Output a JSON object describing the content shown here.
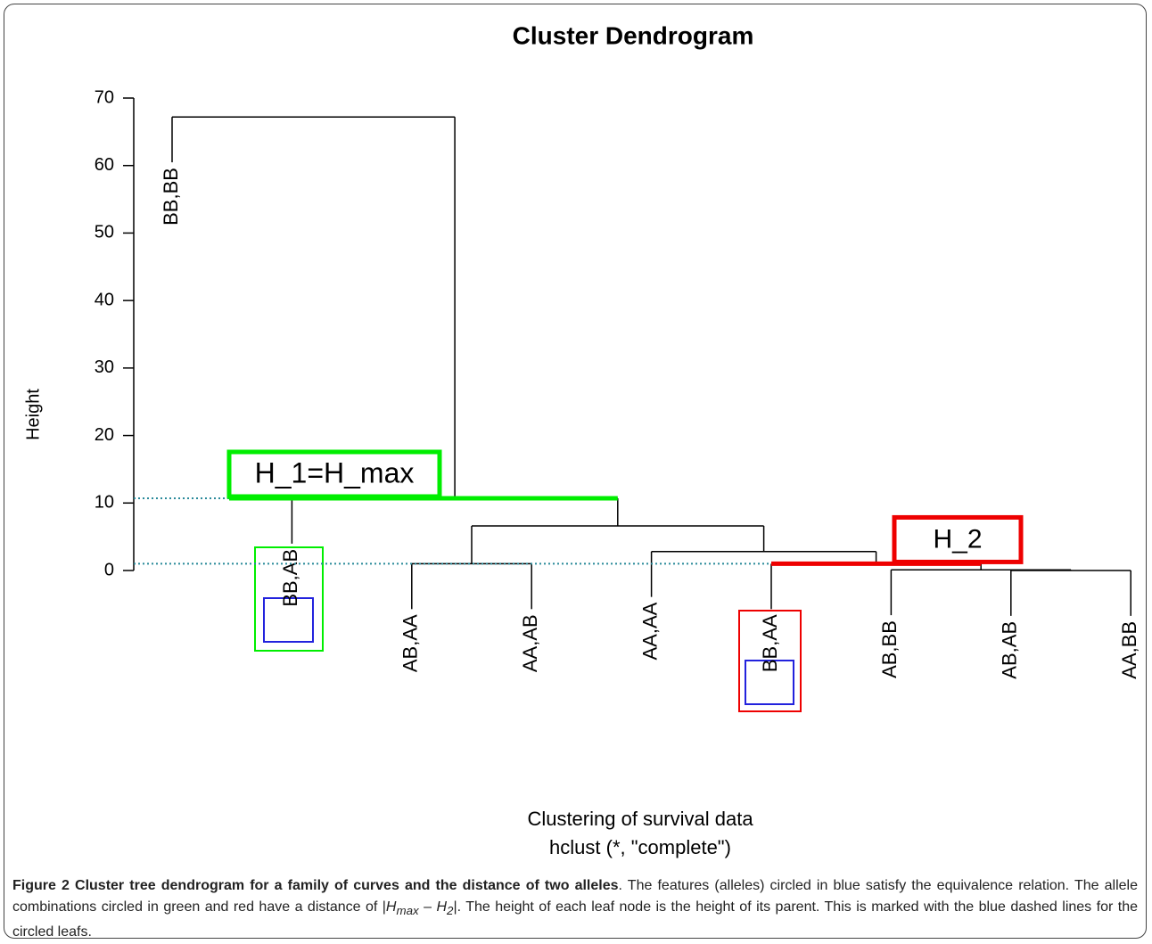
{
  "chart_data": {
    "type": "dendrogram",
    "title": "Cluster Dendrogram",
    "ylabel": "Height",
    "xlabel": "Clustering of survival data",
    "subtitle": "hclust (*, \"complete\")",
    "leaves": [
      "BB,BB",
      "BB,AB",
      "AB,AA",
      "AA,AB",
      "AA,AA",
      "BB,AA",
      "AB,BB",
      "AB,AB",
      "AA,BB"
    ],
    "merges": [
      {
        "children": [
          -8,
          -9
        ],
        "height": 0.0
      },
      {
        "children": [
          -7,
          1
        ],
        "height": 0.1
      },
      {
        "children": [
          -3,
          -4
        ],
        "height": 1.0
      },
      {
        "children": [
          -6,
          2
        ],
        "height": 1.0
      },
      {
        "children": [
          -5,
          4
        ],
        "height": 2.8
      },
      {
        "children": [
          3,
          5
        ],
        "height": 6.6
      },
      {
        "children": [
          -2,
          6
        ],
        "height": 10.7
      },
      {
        "children": [
          -1,
          7
        ],
        "height": 67.2
      }
    ],
    "hang": 6.72,
    "ylim": [
      0,
      70
    ],
    "yticks": [
      0,
      10,
      20,
      30,
      40,
      50,
      60,
      70
    ],
    "color": "#000000",
    "reference_line_color": "#2a8a9a",
    "highlights": [
      {
        "label": "H_1=H_max",
        "color": "#00ee00",
        "merge": 7
      },
      {
        "label": "H_2",
        "color": "#ee0000",
        "merge": 4
      }
    ]
  },
  "caption": {
    "heading": "Figure 2 Cluster tree dendrogram for a family of curves and the distance of two alleles",
    "text": [
      ". The features (alleles) circled in blue satisfy the equivalence relation. The allele combinations circled in green and red have a distance of |",
      "H",
      "max",
      " – ",
      "H",
      "2",
      "|. The height of each leaf node is the height of its parent. This is marked with the blue dashed lines for the circled leafs."
    ]
  }
}
